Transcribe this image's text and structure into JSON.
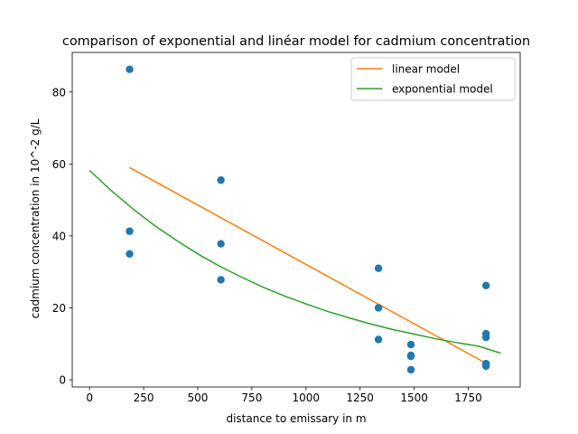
{
  "chart_data": {
    "type": "scatter",
    "title": "comparison of exponential and linéar model for cadmium concentration",
    "xlabel": "distance to emissary in m",
    "ylabel": "cadmium concentration in 10^-2 g/L",
    "xlim": [
      -80,
      1990
    ],
    "ylim": [
      -2,
      91
    ],
    "x_ticks": [
      0,
      250,
      500,
      750,
      1000,
      1250,
      1500,
      1750
    ],
    "y_ticks": [
      0,
      20,
      40,
      60,
      80
    ],
    "grid": false,
    "legend_position": "top-right",
    "scatter": {
      "color": "#1f77b4",
      "points": [
        {
          "x": 185,
          "y": 86.3
        },
        {
          "x": 185,
          "y": 41.3
        },
        {
          "x": 185,
          "y": 35.0
        },
        {
          "x": 607,
          "y": 55.5
        },
        {
          "x": 607,
          "y": 37.8
        },
        {
          "x": 607,
          "y": 27.8
        },
        {
          "x": 1335,
          "y": 31.0
        },
        {
          "x": 1335,
          "y": 20.0
        },
        {
          "x": 1335,
          "y": 11.2
        },
        {
          "x": 1485,
          "y": 9.8
        },
        {
          "x": 1485,
          "y": 6.8
        },
        {
          "x": 1485,
          "y": 6.5
        },
        {
          "x": 1485,
          "y": 2.8
        },
        {
          "x": 1832,
          "y": 26.2
        },
        {
          "x": 1832,
          "y": 12.8
        },
        {
          "x": 1832,
          "y": 11.8
        },
        {
          "x": 1832,
          "y": 4.5
        },
        {
          "x": 1832,
          "y": 3.8
        }
      ]
    },
    "series": [
      {
        "name": "linear model",
        "color": "#ff7f0e",
        "type": "line",
        "points": [
          {
            "x": 185,
            "y": 59.0
          },
          {
            "x": 1832,
            "y": 4.6
          }
        ]
      },
      {
        "name": "exponential model",
        "color": "#2ca02c",
        "type": "line",
        "points": [
          {
            "x": 0,
            "y": 58.2
          },
          {
            "x": 100,
            "y": 52.6
          },
          {
            "x": 200,
            "y": 47.5
          },
          {
            "x": 300,
            "y": 42.9
          },
          {
            "x": 400,
            "y": 38.8
          },
          {
            "x": 500,
            "y": 35.0
          },
          {
            "x": 600,
            "y": 31.6
          },
          {
            "x": 700,
            "y": 28.6
          },
          {
            "x": 800,
            "y": 25.8
          },
          {
            "x": 900,
            "y": 23.3
          },
          {
            "x": 1000,
            "y": 21.1
          },
          {
            "x": 1100,
            "y": 19.0
          },
          {
            "x": 1200,
            "y": 17.2
          },
          {
            "x": 1300,
            "y": 15.5
          },
          {
            "x": 1400,
            "y": 14.0
          },
          {
            "x": 1500,
            "y": 12.7
          },
          {
            "x": 1600,
            "y": 11.4
          },
          {
            "x": 1700,
            "y": 10.3
          },
          {
            "x": 1800,
            "y": 9.3
          },
          {
            "x": 1900,
            "y": 7.4
          }
        ]
      }
    ]
  }
}
